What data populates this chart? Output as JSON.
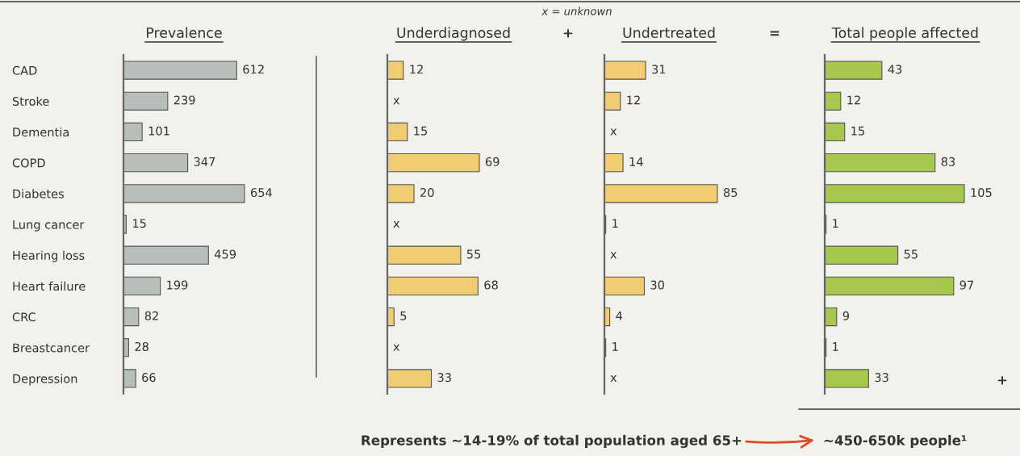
{
  "chart_data": [
    {
      "type": "bar",
      "orientation": "horizontal",
      "title": "Prevalence",
      "categories": [
        "CAD",
        "Stroke",
        "Dementia",
        "COPD",
        "Diabetes",
        "Lung cancer",
        "Hearing loss",
        "Heart failure",
        "CRC",
        "Breastcancer",
        "Depression"
      ],
      "color": "#b8bfba",
      "values": [
        612,
        239,
        101,
        347,
        654,
        15,
        459,
        199,
        82,
        28,
        66
      ],
      "data_labels": true
    },
    {
      "type": "bar",
      "orientation": "horizontal",
      "title": "Underdiagnosed",
      "categories": [
        null,
        null,
        null,
        null,
        null,
        null,
        null,
        null,
        null,
        null,
        null
      ],
      "color": "#f0cd72",
      "values": [
        12,
        null,
        15,
        69,
        20,
        null,
        55,
        68,
        5,
        null,
        33
      ],
      "value_labels": [
        "12",
        "x",
        "15",
        "69",
        "20",
        "x",
        "55",
        "68",
        "5",
        "x",
        "33"
      ],
      "annotations": [
        "x = unknown",
        "+"
      ]
    },
    {
      "type": "bar",
      "orientation": "horizontal",
      "title": "Undertreated",
      "categories": [
        null,
        null,
        null,
        null,
        null,
        null,
        null,
        null,
        null,
        null,
        null
      ],
      "color": "#f0cd72",
      "values": [
        31,
        12,
        null,
        14,
        85,
        1,
        null,
        30,
        4,
        1,
        null
      ],
      "value_labels": [
        "31",
        "12",
        "x",
        "14",
        "85",
        "1",
        "x",
        "30",
        "4",
        "1",
        "x"
      ],
      "annotations": [
        "="
      ]
    },
    {
      "type": "bar",
      "orientation": "horizontal",
      "title": "Total people affected",
      "categories": [
        null,
        null,
        null,
        null,
        null,
        null,
        null,
        null,
        null,
        null,
        null
      ],
      "color": "#a6c84c",
      "values": [
        43,
        12,
        15,
        83,
        105,
        1,
        55,
        97,
        9,
        1,
        33
      ],
      "data_labels": true,
      "annotations": [
        "+",
        "Represents ~14-19% of total population aged 65+",
        "~450-650k people¹"
      ]
    }
  ]
}
